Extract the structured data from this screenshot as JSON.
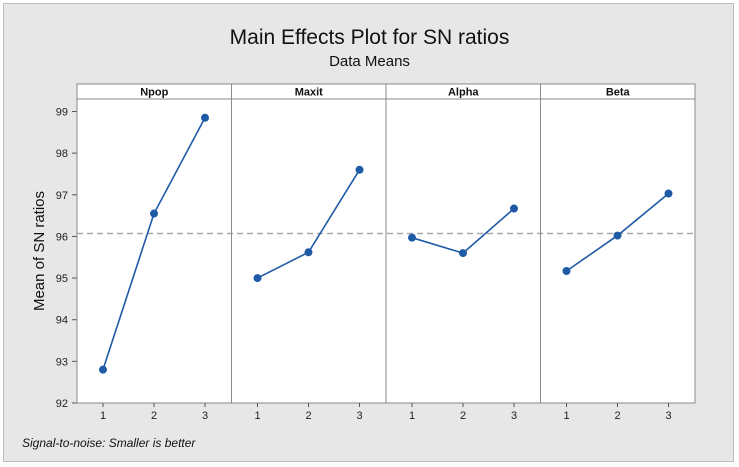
{
  "chart_data": {
    "type": "line",
    "title": "Main Effects Plot for SN ratios",
    "subtitle": "Data Means",
    "ylabel": "Mean of SN ratios",
    "xlabel": "",
    "ylim": [
      92,
      99.3
    ],
    "y_ticks": [
      92,
      93,
      94,
      95,
      96,
      97,
      98,
      99
    ],
    "levels": [
      1,
      2,
      3
    ],
    "grand_mean": 96.07,
    "reference_line": "dashed",
    "color": "#1f5aa6",
    "panels": [
      {
        "name": "Npop",
        "values": [
          92.8,
          96.55,
          98.85
        ]
      },
      {
        "name": "Maxit",
        "values": [
          95.0,
          95.62,
          97.6
        ]
      },
      {
        "name": "Alpha",
        "values": [
          95.97,
          95.6,
          96.67
        ]
      },
      {
        "name": "Beta",
        "values": [
          95.17,
          96.02,
          97.03
        ]
      }
    ],
    "footnote": "Signal-to-noise: Smaller is better"
  }
}
